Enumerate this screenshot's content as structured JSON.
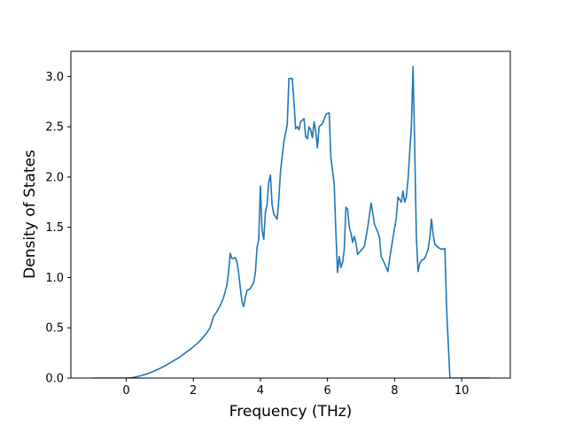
{
  "chart_data": {
    "type": "line",
    "title": "",
    "xlabel": "Frequency (THz)",
    "ylabel": "Density of States",
    "xlim": [
      -1.65,
      11.45
    ],
    "ylim": [
      0,
      3.25
    ],
    "xticks": [
      0,
      2,
      4,
      6,
      8,
      10
    ],
    "yticks": [
      0.0,
      0.5,
      1.0,
      1.5,
      2.0,
      2.5,
      3.0
    ],
    "ytick_labels": [
      "0.0",
      "0.5",
      "1.0",
      "1.5",
      "2.0",
      "2.5",
      "3.0"
    ],
    "grid": false,
    "legend": "none",
    "line_color": "#1f77b4",
    "series": [
      {
        "points": [
          [
            -1.0,
            0.0
          ],
          [
            -0.5,
            0.0
          ],
          [
            0.0,
            0.0
          ],
          [
            0.2,
            0.005
          ],
          [
            0.4,
            0.02
          ],
          [
            0.6,
            0.04
          ],
          [
            0.8,
            0.065
          ],
          [
            1.0,
            0.095
          ],
          [
            1.2,
            0.13
          ],
          [
            1.4,
            0.17
          ],
          [
            1.6,
            0.21
          ],
          [
            1.8,
            0.26
          ],
          [
            2.0,
            0.31
          ],
          [
            2.2,
            0.37
          ],
          [
            2.4,
            0.45
          ],
          [
            2.5,
            0.5
          ],
          [
            2.6,
            0.61
          ],
          [
            2.7,
            0.66
          ],
          [
            2.8,
            0.72
          ],
          [
            2.9,
            0.8
          ],
          [
            3.0,
            0.92
          ],
          [
            3.05,
            1.05
          ],
          [
            3.1,
            1.24
          ],
          [
            3.15,
            1.19
          ],
          [
            3.2,
            1.19
          ],
          [
            3.25,
            1.2
          ],
          [
            3.3,
            1.16
          ],
          [
            3.35,
            1.05
          ],
          [
            3.4,
            0.9
          ],
          [
            3.45,
            0.76
          ],
          [
            3.5,
            0.71
          ],
          [
            3.55,
            0.8
          ],
          [
            3.6,
            0.87
          ],
          [
            3.7,
            0.89
          ],
          [
            3.8,
            0.95
          ],
          [
            3.85,
            1.05
          ],
          [
            3.9,
            1.3
          ],
          [
            3.95,
            1.38
          ],
          [
            4.0,
            1.91
          ],
          [
            4.05,
            1.47
          ],
          [
            4.1,
            1.38
          ],
          [
            4.15,
            1.65
          ],
          [
            4.2,
            1.73
          ],
          [
            4.25,
            1.95
          ],
          [
            4.3,
            2.02
          ],
          [
            4.35,
            1.72
          ],
          [
            4.4,
            1.63
          ],
          [
            4.5,
            1.58
          ],
          [
            4.55,
            1.78
          ],
          [
            4.6,
            2.06
          ],
          [
            4.7,
            2.35
          ],
          [
            4.8,
            2.52
          ],
          [
            4.85,
            2.98
          ],
          [
            4.95,
            2.98
          ],
          [
            5.0,
            2.75
          ],
          [
            5.05,
            2.48
          ],
          [
            5.1,
            2.5
          ],
          [
            5.15,
            2.47
          ],
          [
            5.2,
            2.55
          ],
          [
            5.3,
            2.58
          ],
          [
            5.35,
            2.4
          ],
          [
            5.4,
            2.38
          ],
          [
            5.45,
            2.5
          ],
          [
            5.5,
            2.47
          ],
          [
            5.55,
            2.39
          ],
          [
            5.6,
            2.55
          ],
          [
            5.65,
            2.45
          ],
          [
            5.7,
            2.29
          ],
          [
            5.75,
            2.5
          ],
          [
            5.85,
            2.53
          ],
          [
            5.95,
            2.62
          ],
          [
            6.05,
            2.64
          ],
          [
            6.1,
            2.2
          ],
          [
            6.2,
            1.93
          ],
          [
            6.25,
            1.45
          ],
          [
            6.3,
            1.05
          ],
          [
            6.35,
            1.21
          ],
          [
            6.4,
            1.1
          ],
          [
            6.45,
            1.15
          ],
          [
            6.5,
            1.28
          ],
          [
            6.55,
            1.7
          ],
          [
            6.6,
            1.68
          ],
          [
            6.65,
            1.5
          ],
          [
            6.7,
            1.44
          ],
          [
            6.75,
            1.35
          ],
          [
            6.8,
            1.41
          ],
          [
            6.85,
            1.34
          ],
          [
            6.9,
            1.23
          ],
          [
            7.0,
            1.27
          ],
          [
            7.1,
            1.31
          ],
          [
            7.2,
            1.5
          ],
          [
            7.3,
            1.74
          ],
          [
            7.35,
            1.64
          ],
          [
            7.4,
            1.53
          ],
          [
            7.5,
            1.45
          ],
          [
            7.55,
            1.4
          ],
          [
            7.6,
            1.21
          ],
          [
            7.7,
            1.14
          ],
          [
            7.8,
            1.06
          ],
          [
            7.85,
            1.18
          ],
          [
            7.95,
            1.39
          ],
          [
            8.05,
            1.59
          ],
          [
            8.1,
            1.8
          ],
          [
            8.2,
            1.75
          ],
          [
            8.25,
            1.86
          ],
          [
            8.3,
            1.75
          ],
          [
            8.35,
            1.8
          ],
          [
            8.4,
            1.97
          ],
          [
            8.5,
            2.5
          ],
          [
            8.55,
            3.1
          ],
          [
            8.6,
            2.3
          ],
          [
            8.65,
            1.4
          ],
          [
            8.7,
            1.06
          ],
          [
            8.75,
            1.14
          ],
          [
            8.8,
            1.17
          ],
          [
            8.9,
            1.19
          ],
          [
            9.0,
            1.28
          ],
          [
            9.05,
            1.4
          ],
          [
            9.1,
            1.58
          ],
          [
            9.15,
            1.43
          ],
          [
            9.2,
            1.33
          ],
          [
            9.3,
            1.3
          ],
          [
            9.4,
            1.28
          ],
          [
            9.5,
            1.29
          ],
          [
            9.55,
            0.7
          ],
          [
            9.6,
            0.35
          ],
          [
            9.65,
            0.0
          ],
          [
            9.7,
            0.0
          ],
          [
            10.0,
            0.0
          ],
          [
            10.4,
            0.0
          ],
          [
            10.85,
            0.0
          ]
        ]
      }
    ]
  }
}
